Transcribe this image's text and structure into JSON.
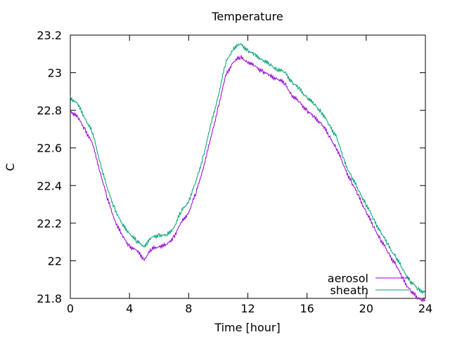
{
  "chart_data": {
    "type": "line",
    "title": "Temperature",
    "xlabel": "Time [hour]",
    "ylabel": "C",
    "xlim": [
      0,
      24
    ],
    "ylim": [
      21.8,
      23.2
    ],
    "xticks": [
      "0",
      "4",
      "8",
      "12",
      "16",
      "20",
      "24"
    ],
    "yticks": [
      "21.8",
      "22",
      "22.2",
      "22.4",
      "22.6",
      "22.8",
      "23",
      "23.2"
    ],
    "grid": false,
    "legend_position": "bottom-right",
    "series": [
      {
        "name": "aerosol",
        "color": "#9400d3",
        "x": [
          0,
          0.5,
          1,
          1.5,
          2,
          2.5,
          3,
          3.5,
          4,
          4.5,
          5,
          5.5,
          6,
          6.5,
          7,
          7.5,
          8,
          8.5,
          9,
          9.5,
          10,
          10.5,
          11,
          11.5,
          12,
          12.5,
          13,
          13.5,
          14,
          14.5,
          15,
          15.5,
          16,
          16.5,
          17,
          17.5,
          18,
          18.5,
          19,
          19.5,
          20,
          20.5,
          21,
          21.5,
          22,
          22.5,
          23,
          23.5,
          24
        ],
        "y": [
          22.8,
          22.76,
          22.7,
          22.62,
          22.48,
          22.33,
          22.22,
          22.13,
          22.08,
          22.05,
          22.01,
          22.06,
          22.08,
          22.08,
          22.13,
          22.2,
          22.26,
          22.36,
          22.5,
          22.65,
          22.82,
          22.98,
          23.06,
          23.08,
          23.06,
          23.03,
          23.01,
          22.98,
          22.97,
          22.94,
          22.88,
          22.84,
          22.8,
          22.76,
          22.73,
          22.66,
          22.6,
          22.5,
          22.42,
          22.34,
          22.26,
          22.18,
          22.11,
          22.04,
          21.98,
          21.9,
          21.84,
          21.8,
          21.79
        ]
      },
      {
        "name": "sheath",
        "color": "#009e73",
        "x": [
          0,
          0.5,
          1,
          1.5,
          2,
          2.5,
          3,
          3.5,
          4,
          4.5,
          5,
          5.5,
          6,
          6.5,
          7,
          7.5,
          8,
          8.5,
          9,
          9.5,
          10,
          10.5,
          11,
          11.5,
          12,
          12.5,
          13,
          13.5,
          14,
          14.5,
          15,
          15.5,
          16,
          16.5,
          17,
          17.5,
          18,
          18.5,
          19,
          19.5,
          20,
          20.5,
          21,
          21.5,
          22,
          22.5,
          23,
          23.5,
          24
        ],
        "y": [
          22.87,
          22.83,
          22.76,
          22.68,
          22.53,
          22.38,
          22.28,
          22.19,
          22.15,
          22.1,
          22.08,
          22.12,
          22.14,
          22.13,
          22.18,
          22.26,
          22.32,
          22.42,
          22.56,
          22.72,
          22.88,
          23.05,
          23.13,
          23.15,
          23.12,
          23.09,
          23.07,
          23.04,
          23.02,
          23.0,
          22.95,
          22.91,
          22.87,
          22.83,
          22.79,
          22.72,
          22.66,
          22.53,
          22.45,
          22.37,
          22.3,
          22.22,
          22.15,
          22.08,
          22.02,
          21.95,
          21.89,
          21.85,
          21.83
        ]
      }
    ]
  }
}
